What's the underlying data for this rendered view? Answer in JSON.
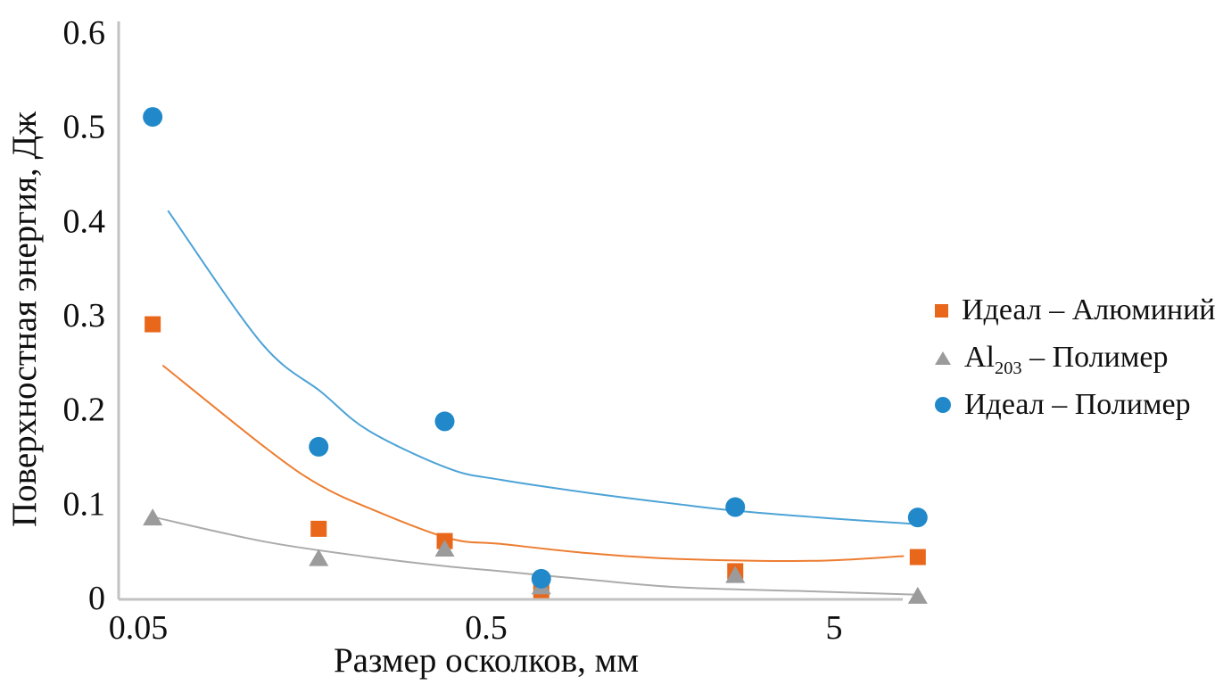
{
  "chart_data": {
    "type": "scatter",
    "title": "",
    "xlabel": "Размер осколков, мм",
    "ylabel": "Поверхностная энергия, Дж",
    "x_scale": "log",
    "xlim": [
      0.05,
      10
    ],
    "ylim": [
      0,
      0.6
    ],
    "grid": false,
    "x_ticks": [
      {
        "label": "0.05",
        "value": 0.05
      },
      {
        "label": "0.5",
        "value": 0.5
      },
      {
        "label": "5",
        "value": 5
      }
    ],
    "y_ticks": [
      {
        "label": "0",
        "value": 0
      },
      {
        "label": "0.1",
        "value": 0.1
      },
      {
        "label": "0.2",
        "value": 0.2
      },
      {
        "label": "0.3",
        "value": 0.3
      },
      {
        "label": "0.4",
        "value": 0.4
      },
      {
        "label": "0.5",
        "value": 0.5
      },
      {
        "label": "0.6",
        "value": 0.6
      }
    ],
    "x": [
      0.055,
      0.165,
      0.38,
      0.72,
      2.6,
      8.7
    ],
    "series": [
      {
        "name": "Идеал – Алюминий",
        "marker": "square",
        "color": "#e8671b",
        "line_color": "#ed7d31",
        "values": [
          0.29,
          0.073,
          0.06,
          0.008,
          0.028,
          0.043
        ],
        "trend": [
          [
            0.059,
            0.246
          ],
          [
            0.117,
            0.158
          ],
          [
            0.165,
            0.12
          ],
          [
            0.23,
            0.095
          ],
          [
            0.39,
            0.063
          ],
          [
            0.55,
            0.057
          ],
          [
            0.99,
            0.047
          ],
          [
            1.79,
            0.041
          ],
          [
            4.3,
            0.039
          ],
          [
            7.9,
            0.044
          ]
        ]
      },
      {
        "name": "Al203 – Полимер",
        "marker": "triangle",
        "color": "#9b9b9b",
        "line_color": "#ababab",
        "values": [
          0.085,
          0.042,
          0.052,
          0.012,
          0.024,
          0.002
        ],
        "trend": [
          [
            0.056,
            0.085
          ],
          [
            0.117,
            0.059
          ],
          [
            0.23,
            0.043
          ],
          [
            0.39,
            0.033
          ],
          [
            0.55,
            0.028
          ],
          [
            0.99,
            0.019
          ],
          [
            1.79,
            0.011
          ],
          [
            4.3,
            0.0066
          ],
          [
            8.7,
            0.003
          ]
        ]
      },
      {
        "name": "Идеал – Полимер",
        "marker": "circle",
        "color": "#2189c9",
        "line_color": "#4da3d6",
        "values": [
          0.51,
          0.16,
          0.187,
          0.02,
          0.096,
          0.085
        ],
        "trend": [
          [
            0.061,
            0.41
          ],
          [
            0.113,
            0.27
          ],
          [
            0.168,
            0.218
          ],
          [
            0.23,
            0.177
          ],
          [
            0.39,
            0.137
          ],
          [
            0.55,
            0.125
          ],
          [
            0.99,
            0.111
          ],
          [
            1.79,
            0.099
          ],
          [
            2.63,
            0.092
          ],
          [
            4.9,
            0.084
          ],
          [
            8.65,
            0.078
          ]
        ]
      }
    ],
    "legend": {
      "position": "right",
      "items": [
        {
          "label": "Идеал – Алюминий",
          "marker": "square",
          "color": "#e8671b"
        },
        {
          "label": "Al203 – Полимер",
          "label_prefix": "Al",
          "label_sub": "203",
          "label_suffix": " – Полимер",
          "marker": "triangle",
          "color": "#9b9b9b"
        },
        {
          "label": "Идеал – Полимер",
          "marker": "circle",
          "color": "#2189c9"
        }
      ]
    }
  }
}
